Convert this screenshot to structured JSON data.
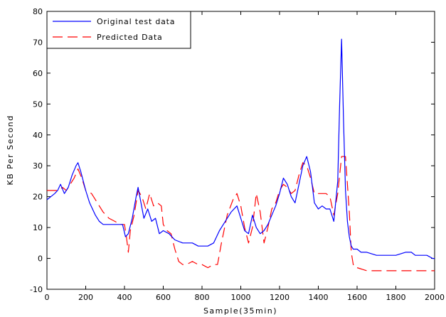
{
  "chart_data": {
    "type": "line",
    "xlabel": "Sample(35min)",
    "ylabel": "KB Per Second",
    "xlim": [
      0,
      2000
    ],
    "ylim": [
      -10,
      80
    ],
    "x_ticks": [
      0,
      200,
      400,
      600,
      800,
      1000,
      1200,
      1400,
      1600,
      1800,
      2000
    ],
    "y_ticks": [
      -10,
      0,
      10,
      20,
      30,
      40,
      50,
      60,
      70,
      80
    ],
    "grid": false,
    "legend_position": "top-left",
    "series": [
      {
        "name": "Original test data",
        "color": "#0000ff",
        "style": "solid",
        "x": [
          0,
          20,
          40,
          55,
          70,
          90,
          110,
          130,
          150,
          160,
          175,
          200,
          220,
          250,
          270,
          290,
          310,
          330,
          360,
          390,
          405,
          420,
          440,
          460,
          470,
          485,
          500,
          520,
          540,
          560,
          580,
          600,
          630,
          660,
          700,
          750,
          780,
          800,
          830,
          860,
          890,
          920,
          950,
          980,
          1000,
          1020,
          1040,
          1060,
          1080,
          1100,
          1120,
          1140,
          1160,
          1180,
          1200,
          1220,
          1240,
          1260,
          1280,
          1300,
          1320,
          1340,
          1360,
          1380,
          1400,
          1420,
          1440,
          1460,
          1480,
          1500,
          1510,
          1520,
          1530,
          1540,
          1550,
          1560,
          1570,
          1580,
          1600,
          1620,
          1650,
          1700,
          1750,
          1800,
          1850,
          1880,
          1900,
          1930,
          1960,
          1990,
          2000
        ],
        "values": [
          19,
          20,
          21,
          22,
          24,
          21,
          23,
          27,
          30,
          31,
          28,
          22,
          18,
          14,
          12,
          11,
          11,
          11,
          11,
          11,
          7,
          8,
          13,
          20,
          23,
          18,
          13,
          16,
          12,
          13,
          8,
          9,
          8,
          6,
          5,
          5,
          4,
          4,
          4,
          5,
          9,
          12,
          15,
          17,
          13,
          9,
          8,
          14,
          10,
          8,
          9,
          11,
          14,
          17,
          21,
          26,
          24,
          20,
          18,
          24,
          30,
          33,
          28,
          18,
          16,
          17,
          16,
          16,
          12,
          25,
          50,
          71,
          45,
          22,
          12,
          7,
          4,
          3,
          3,
          2,
          2,
          1,
          1,
          1,
          2,
          2,
          1,
          1,
          1,
          0,
          0
        ]
      },
      {
        "name": "Predicted Data",
        "color": "#ff0000",
        "style": "dashed",
        "x": [
          0,
          20,
          40,
          60,
          80,
          100,
          120,
          140,
          160,
          180,
          200,
          230,
          260,
          290,
          320,
          350,
          380,
          400,
          410,
          420,
          430,
          450,
          470,
          490,
          510,
          530,
          550,
          570,
          590,
          600,
          620,
          640,
          660,
          680,
          700,
          720,
          750,
          780,
          800,
          830,
          860,
          880,
          900,
          930,
          960,
          980,
          1000,
          1020,
          1040,
          1060,
          1080,
          1100,
          1120,
          1140,
          1160,
          1180,
          1200,
          1220,
          1240,
          1260,
          1280,
          1300,
          1320,
          1340,
          1360,
          1380,
          1400,
          1420,
          1440,
          1460,
          1480,
          1500,
          1520,
          1540,
          1560,
          1570,
          1580,
          1590,
          1600,
          1650,
          1700,
          1800,
          1900,
          2000
        ],
        "values": [
          22,
          22,
          22,
          22,
          23,
          22,
          24,
          26,
          29,
          26,
          22,
          21,
          18,
          15,
          13,
          12,
          11,
          11,
          7,
          2,
          9,
          14,
          22,
          20,
          16,
          21,
          17,
          18,
          17,
          11,
          9,
          8,
          3,
          -1,
          -2,
          -2,
          -1,
          -2,
          -2,
          -3,
          -2,
          -2,
          5,
          14,
          19,
          21,
          17,
          10,
          5,
          10,
          21,
          15,
          5,
          10,
          16,
          18,
          22,
          24,
          23,
          21,
          22,
          27,
          31,
          30,
          26,
          21,
          21,
          21,
          21,
          20,
          14,
          21,
          33,
          33,
          15,
          2,
          -2,
          -3,
          -3,
          -4,
          -4,
          -4,
          -4,
          -4
        ]
      }
    ]
  }
}
